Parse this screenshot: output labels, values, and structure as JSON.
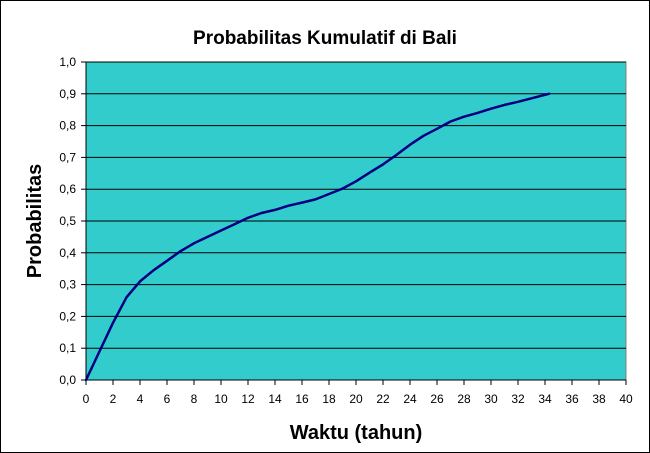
{
  "chart_data": {
    "type": "line",
    "title": "Probabilitas Kumulatif di  Bali",
    "xlabel": "Waktu (tahun)",
    "ylabel": "Probabilitas",
    "xlim": [
      0,
      40
    ],
    "ylim": [
      0,
      1.0
    ],
    "x_ticks": [
      "0",
      "2",
      "4",
      "6",
      "8",
      "10",
      "12",
      "14",
      "16",
      "18",
      "20",
      "22",
      "24",
      "26",
      "28",
      "30",
      "32",
      "34",
      "36",
      "38",
      "40"
    ],
    "y_ticks": [
      "0,0",
      "0,1",
      "0,2",
      "0,3",
      "0,4",
      "0,5",
      "0,6",
      "0,7",
      "0,8",
      "0,9",
      "1,0"
    ],
    "grid": "horizontal",
    "legend": "none",
    "colors": {
      "plot_bg": "#33CCCC",
      "line": "#000080",
      "grid": "#000000"
    },
    "series": [
      {
        "name": "Probabilitas Kumulatif",
        "x": [
          0,
          1,
          2,
          3,
          4,
          5,
          6,
          7,
          8,
          9,
          10,
          11,
          12,
          13,
          14,
          15,
          16,
          17,
          18,
          19,
          20,
          21,
          22,
          23,
          24,
          25,
          26,
          27,
          28,
          29,
          30,
          31,
          32,
          33,
          34.3
        ],
        "y": [
          0.0,
          0.09,
          0.18,
          0.26,
          0.31,
          0.345,
          0.375,
          0.405,
          0.43,
          0.45,
          0.47,
          0.49,
          0.51,
          0.525,
          0.535,
          0.548,
          0.558,
          0.568,
          0.585,
          0.602,
          0.625,
          0.652,
          0.678,
          0.708,
          0.74,
          0.768,
          0.79,
          0.813,
          0.828,
          0.84,
          0.853,
          0.865,
          0.875,
          0.886,
          0.9
        ]
      }
    ]
  }
}
